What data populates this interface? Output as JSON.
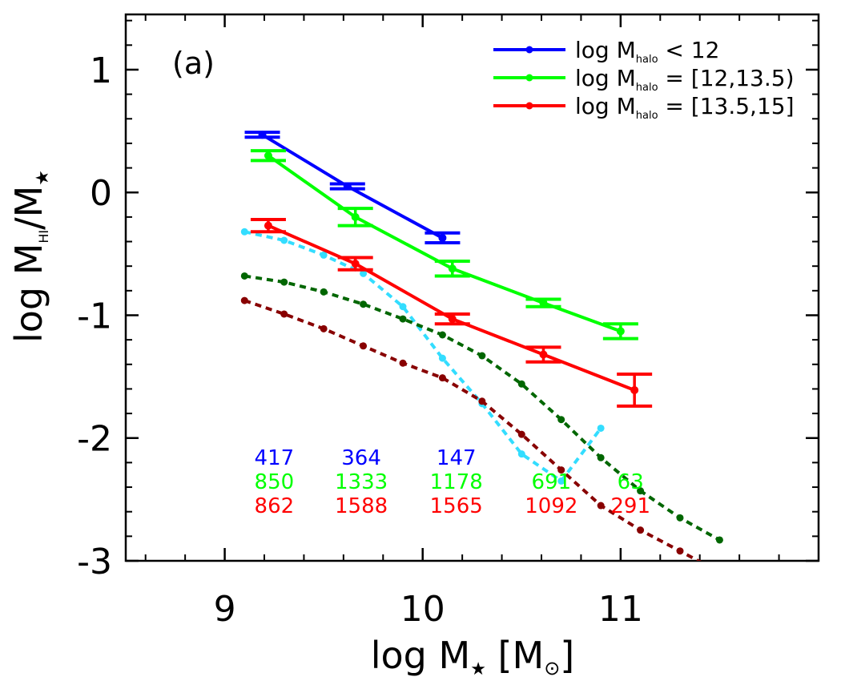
{
  "chart_data": {
    "type": "line",
    "panel_label": "(a)",
    "xlabel": {
      "main": "log M",
      "sub": "★",
      "unit_open": " [M",
      "unit_sub": "⊙",
      "unit_close": "]"
    },
    "ylabel": {
      "main": "log M",
      "sub1": "HI",
      "mid": "/M",
      "sub2": "★"
    },
    "xlim": [
      8.5,
      12.0
    ],
    "ylim": [
      -3.0,
      1.45
    ],
    "x_ticks": [
      9,
      10,
      11
    ],
    "x_tick_labels": [
      "9",
      "10",
      "11"
    ],
    "y_ticks": [
      1,
      0,
      -1,
      -2,
      -3
    ],
    "y_tick_labels": [
      "1",
      "0",
      "-1",
      "-2",
      "-3"
    ],
    "legend": {
      "position": "top-right"
    },
    "series": [
      {
        "id": "low",
        "legend_main": "log M",
        "legend_sub": "halo",
        "legend_rest": " < 12",
        "color": "#0000ff",
        "x": [
          9.19,
          9.62,
          10.1
        ],
        "y": [
          0.47,
          0.05,
          -0.37
        ],
        "err": [
          0.02,
          0.02,
          0.04
        ],
        "counts": [
          "417",
          "364",
          "147"
        ]
      },
      {
        "id": "mid",
        "legend_main": "log M",
        "legend_sub": "halo",
        "legend_rest": " = [12,13.5)",
        "color": "#00ff00",
        "x": [
          9.22,
          9.66,
          10.15,
          10.61,
          11.0
        ],
        "y": [
          0.3,
          -0.2,
          -0.62,
          -0.9,
          -1.13
        ],
        "err": [
          0.04,
          0.07,
          0.06,
          0.03,
          0.06
        ],
        "counts": [
          "850",
          "1333",
          "1178",
          "691",
          "63"
        ]
      },
      {
        "id": "high",
        "legend_main": "log M",
        "legend_sub": "halo",
        "legend_rest": " = [13.5,15]",
        "color": "#ff0000",
        "x": [
          9.22,
          9.66,
          10.15,
          10.61,
          11.07
        ],
        "y": [
          -0.27,
          -0.58,
          -1.03,
          -1.32,
          -1.61
        ],
        "err": [
          0.05,
          0.05,
          0.04,
          0.06,
          0.13
        ],
        "counts": [
          "862",
          "1588",
          "1565",
          "1092",
          "291"
        ]
      }
    ],
    "models": [
      {
        "id": "cyan",
        "color": "#33ddff",
        "x": [
          9.1,
          9.3,
          9.5,
          9.7,
          9.9,
          10.1,
          10.3,
          10.5,
          10.7,
          10.9
        ],
        "y": [
          -0.32,
          -0.39,
          -0.51,
          -0.66,
          -0.93,
          -1.35,
          -1.72,
          -2.13,
          -2.35,
          -1.92
        ]
      },
      {
        "id": "darkgreen",
        "color": "#006600",
        "x": [
          9.1,
          9.3,
          9.5,
          9.7,
          9.9,
          10.1,
          10.3,
          10.5,
          10.7,
          10.9,
          11.1,
          11.3,
          11.5
        ],
        "y": [
          -0.68,
          -0.73,
          -0.81,
          -0.91,
          -1.03,
          -1.16,
          -1.33,
          -1.56,
          -1.85,
          -2.16,
          -2.43,
          -2.65,
          -2.83
        ]
      },
      {
        "id": "darkred",
        "color": "#880000",
        "x": [
          9.1,
          9.3,
          9.5,
          9.7,
          9.9,
          10.1,
          10.3,
          10.5,
          10.7,
          10.9,
          11.1,
          11.3,
          11.45
        ],
        "y": [
          -0.88,
          -0.99,
          -1.11,
          -1.25,
          -1.39,
          -1.51,
          -1.7,
          -1.97,
          -2.26,
          -2.55,
          -2.75,
          -2.92,
          -3.05
        ]
      }
    ],
    "count_label_x": [
      9.25,
      9.69,
      10.17,
      10.65,
      11.05
    ]
  }
}
